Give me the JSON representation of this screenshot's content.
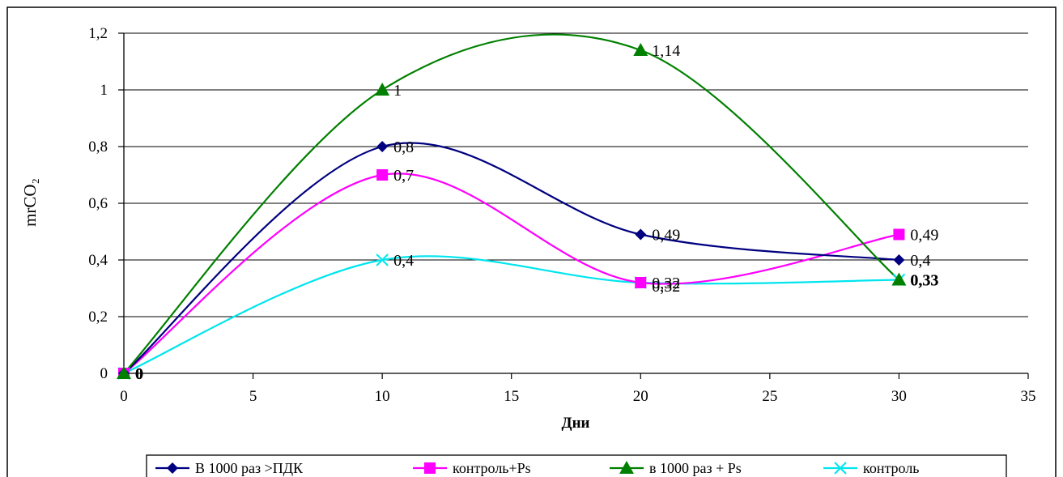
{
  "chart_data": {
    "type": "line",
    "smooth": true,
    "xlabel": "Дни",
    "ylabel": "mrCO₂",
    "xlim": [
      0,
      35
    ],
    "ylim": [
      0,
      1.2
    ],
    "x_ticks": [
      "0",
      "5",
      "10",
      "15",
      "20",
      "25",
      "30",
      "35"
    ],
    "y_ticks": [
      "0",
      "0,2",
      "0,4",
      "0,6",
      "0,8",
      "1",
      "1,2"
    ],
    "grid": "horizontal",
    "legend_position": "bottom",
    "x": [
      0,
      10,
      20,
      30
    ],
    "series": [
      {
        "name": "В 1000 раз >ПДК",
        "values": [
          0,
          0.8,
          0.49,
          0.4
        ],
        "labels": [
          "0",
          "0,8",
          "0,49",
          "0,4"
        ],
        "color": "#000080",
        "marker": "diamond"
      },
      {
        "name": "контроль+Ps",
        "values": [
          0,
          0.7,
          0.32,
          0.49
        ],
        "labels": [
          "0",
          "0,7",
          "0,32",
          "0,49"
        ],
        "color": "#ff00ff",
        "marker": "square"
      },
      {
        "name": "в 1000 раз + Ps",
        "values": [
          0,
          1,
          1.14,
          0.33
        ],
        "labels": [
          "0",
          "1",
          "1,14",
          "0,33"
        ],
        "color": "#008000",
        "marker": "triangle"
      },
      {
        "name": "контроль",
        "values": [
          0,
          0.4,
          0.32,
          0.33
        ],
        "labels": [
          "0",
          "0,4",
          "0,32",
          "0,33"
        ],
        "color": "#00e5ee",
        "marker": "x"
      }
    ]
  }
}
